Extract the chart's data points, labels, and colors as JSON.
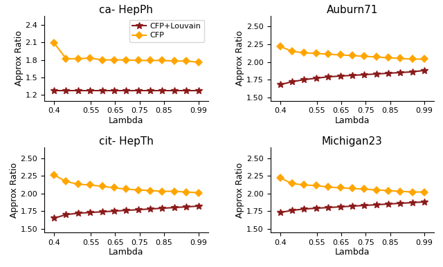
{
  "x_ticks": [
    0.4,
    0.55,
    0.65,
    0.75,
    0.85,
    0.99
  ],
  "x_tick_labels": [
    "0.4",
    "0.55",
    "0.65",
    "0.75",
    "0.85",
    "0.99"
  ],
  "subplots": [
    {
      "title": "ca- HepPh",
      "ylim": [
        1.1,
        2.55
      ],
      "yticks": [
        1.2,
        1.5,
        1.8,
        2.1,
        2.4
      ],
      "cfp_louvain": [
        1.28,
        1.28,
        1.28,
        1.28,
        1.28,
        1.28,
        1.28,
        1.28,
        1.28,
        1.28,
        1.28,
        1.28,
        1.28
      ],
      "cfp": [
        2.09,
        1.82,
        1.82,
        1.83,
        1.8,
        1.8,
        1.8,
        1.79,
        1.79,
        1.79,
        1.78,
        1.78,
        1.76
      ],
      "show_legend": true
    },
    {
      "title": "Auburn71",
      "ylim": [
        1.45,
        2.65
      ],
      "yticks": [
        1.5,
        1.75,
        2.0,
        2.25,
        2.5
      ],
      "cfp_louvain": [
        1.68,
        1.72,
        1.75,
        1.77,
        1.79,
        1.8,
        1.81,
        1.82,
        1.83,
        1.84,
        1.85,
        1.86,
        1.88
      ],
      "cfp": [
        2.22,
        2.15,
        2.13,
        2.12,
        2.11,
        2.1,
        2.09,
        2.08,
        2.07,
        2.06,
        2.05,
        2.04,
        2.04
      ],
      "show_legend": false
    },
    {
      "title": "cit- HepTh",
      "ylim": [
        1.45,
        2.65
      ],
      "yticks": [
        1.5,
        1.75,
        2.0,
        2.25,
        2.5
      ],
      "cfp_louvain": [
        1.65,
        1.7,
        1.72,
        1.73,
        1.74,
        1.75,
        1.76,
        1.77,
        1.78,
        1.79,
        1.8,
        1.81,
        1.82
      ],
      "cfp": [
        2.26,
        2.17,
        2.13,
        2.12,
        2.1,
        2.08,
        2.06,
        2.05,
        2.04,
        2.03,
        2.03,
        2.02,
        2.01
      ],
      "show_legend": false
    },
    {
      "title": "Michigan23",
      "ylim": [
        1.45,
        2.65
      ],
      "yticks": [
        1.5,
        1.75,
        2.0,
        2.25,
        2.5
      ],
      "cfp_louvain": [
        1.73,
        1.76,
        1.78,
        1.79,
        1.8,
        1.81,
        1.82,
        1.83,
        1.84,
        1.85,
        1.86,
        1.87,
        1.88
      ],
      "cfp": [
        2.22,
        2.14,
        2.12,
        2.11,
        2.09,
        2.08,
        2.07,
        2.06,
        2.05,
        2.04,
        2.03,
        2.02,
        2.02
      ],
      "show_legend": false
    }
  ],
  "color_cfp_louvain": "#8B1A1A",
  "color_cfp": "#FFA500",
  "xlabel": "Lambda",
  "ylabel": "Approx Ratio",
  "marker_cfp_louvain": "*",
  "marker_cfp": "D",
  "linewidth": 1.5,
  "markersize_star": 7,
  "markersize_diamond": 6,
  "title_fontsize": 11,
  "label_fontsize": 9,
  "tick_fontsize": 8,
  "legend_fontsize": 8
}
